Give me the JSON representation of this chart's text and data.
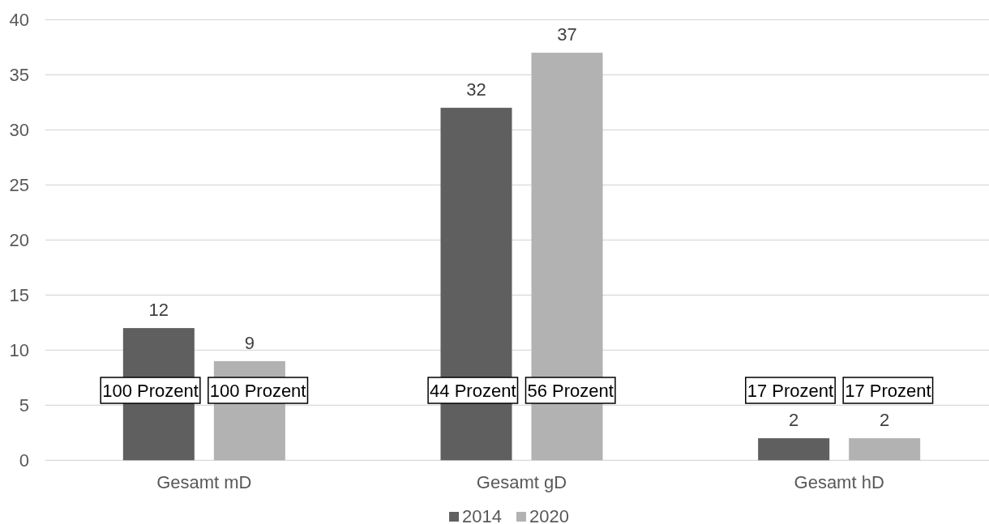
{
  "chart_data": {
    "type": "bar",
    "categories": [
      "Gesamt mD",
      "Gesamt gD",
      "Gesamt hD"
    ],
    "series": [
      {
        "name": "2014",
        "color": "#5f5f5f",
        "values": [
          12,
          32,
          2
        ]
      },
      {
        "name": "2020",
        "color": "#b2b2b2",
        "values": [
          9,
          37,
          2
        ]
      }
    ],
    "ylim": [
      0,
      40
    ],
    "yticks": [
      0,
      5,
      10,
      15,
      20,
      25,
      30,
      35,
      40
    ],
    "grid": "y",
    "legend": "bottom",
    "data_labels": true,
    "annotations": [
      "100 Prozent",
      "100 Prozent",
      "44 Prozent",
      "56 Prozent",
      "17 Prozent",
      "17 Prozent"
    ]
  }
}
